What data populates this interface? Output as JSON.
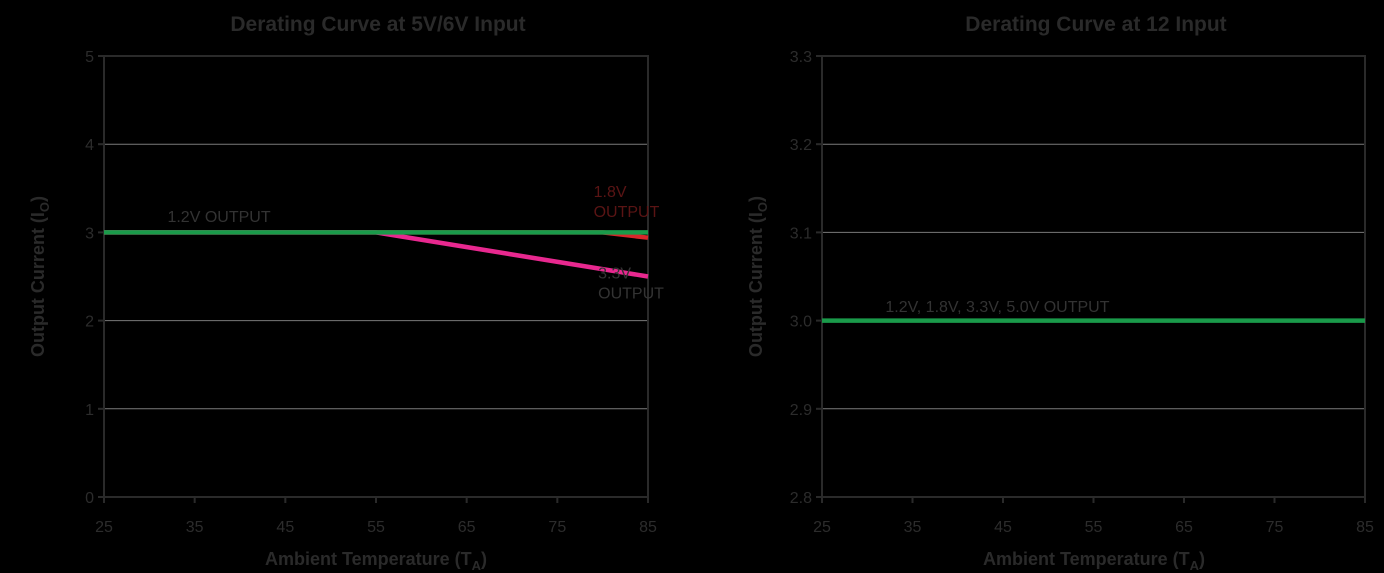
{
  "colors": {
    "background": "#000000",
    "text": "#2a2a2a",
    "grid": "#7a7a7a",
    "green": "#1a9a4a",
    "red": "#d8262b",
    "magenta": "#e8288f",
    "label_red": "#5a1414"
  },
  "chart_data": [
    {
      "type": "line",
      "title": "Derating Curve at 5V/6V Input",
      "xlabel_main": "Ambient Temperature (T",
      "xlabel_sub": "A",
      "xlabel_end": ")",
      "ylabel_main": "Output Current (I",
      "ylabel_sub": "O",
      "ylabel_end": ")",
      "xlim": [
        25,
        85
      ],
      "ylim": [
        0,
        5
      ],
      "xticks": [
        "25",
        "35",
        "45",
        "55",
        "65",
        "75",
        "85"
      ],
      "yticks": [
        "0",
        "1",
        "2",
        "3",
        "4",
        "5"
      ],
      "grid": true,
      "series": [
        {
          "name": "1.8V OUTPUT",
          "color": "#d8262b",
          "x": [
            25,
            55,
            80,
            85
          ],
          "y": [
            3,
            3,
            3,
            2.94
          ]
        },
        {
          "name": "3.3V OUTPUT",
          "color": "#e8288f",
          "x": [
            25,
            55,
            85
          ],
          "y": [
            3,
            3,
            2.5
          ]
        },
        {
          "name": "1.2V OUTPUT",
          "color": "#1a9a4a",
          "x": [
            25,
            85
          ],
          "y": [
            3,
            3
          ]
        }
      ],
      "annotations": [
        {
          "lines": [
            "1.2V OUTPUT"
          ],
          "x": 32,
          "y": 3.12,
          "color": "#333333",
          "anchor": "start"
        },
        {
          "lines": [
            "1.8V",
            "OUTPUT"
          ],
          "x": 79,
          "y": 3.4,
          "color": "#5a1414",
          "anchor": "start"
        },
        {
          "lines": [
            "3.3V",
            "OUTPUT"
          ],
          "x": 79.5,
          "y": 2.48,
          "color": "#333333",
          "anchor": "start"
        }
      ]
    },
    {
      "type": "line",
      "title": "Derating Curve at 12 Input",
      "xlabel_main": "Ambient Temperature (T",
      "xlabel_sub": "A",
      "xlabel_end": ")",
      "ylabel_main": "Output Current (I",
      "ylabel_sub": "O",
      "ylabel_end": ")",
      "xlim": [
        25,
        85
      ],
      "ylim": [
        2.8,
        3.3
      ],
      "xticks": [
        "25",
        "35",
        "45",
        "55",
        "65",
        "75",
        "85"
      ],
      "yticks": [
        "2.8",
        "2.9",
        "3.0",
        "3.1",
        "3.2",
        "3.3"
      ],
      "grid": true,
      "series": [
        {
          "name": "1.2V, 1.8V, 3.3V, 5.0V OUTPUT",
          "color": "#1a9a4a",
          "x": [
            25,
            85
          ],
          "y": [
            3.0,
            3.0
          ]
        }
      ],
      "annotations": [
        {
          "lines": [
            "1.2V, 1.8V, 3.3V, 5.0V OUTPUT"
          ],
          "x": 32,
          "y": 3.01,
          "color": "#333333",
          "anchor": "start"
        }
      ]
    }
  ]
}
